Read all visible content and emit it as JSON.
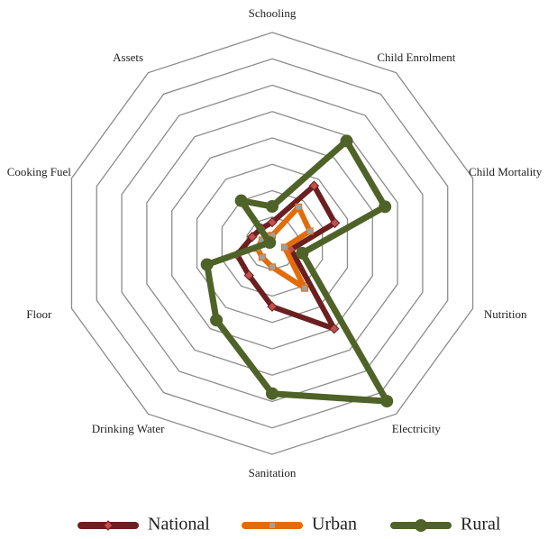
{
  "chart_data": {
    "type": "radar",
    "categories": [
      "Schooling",
      "Child Enrolment",
      "Child Mortality",
      "Nutrition",
      "Electricity",
      "Sanitation",
      "Drinking Water",
      "Floor",
      "Cooking Fuel",
      "Assets"
    ],
    "series": [
      {
        "name": "National",
        "color": "#6b1f1f",
        "marker": "diamond",
        "values": [
          0.8,
          2.7,
          2.5,
          0.75,
          4.0,
          2.4,
          1.5,
          1.4,
          0.8,
          0.7
        ]
      },
      {
        "name": "Urban",
        "color": "#e36c0a",
        "marker": "square",
        "values": [
          0.3,
          1.7,
          1.5,
          0.5,
          2.1,
          0.9,
          0.65,
          0.6,
          0.4,
          0.35
        ]
      },
      {
        "name": "Rural",
        "color": "#4f6228",
        "marker": "circle",
        "values": [
          1.4,
          4.8,
          4.5,
          1.2,
          7.4,
          5.7,
          3.6,
          2.6,
          0.1,
          2.0
        ]
      }
    ],
    "ylim": [
      0,
      8
    ],
    "yticks": [
      1,
      2,
      3,
      4,
      5,
      6,
      7,
      8
    ],
    "grid": true,
    "legend": "bottom"
  }
}
